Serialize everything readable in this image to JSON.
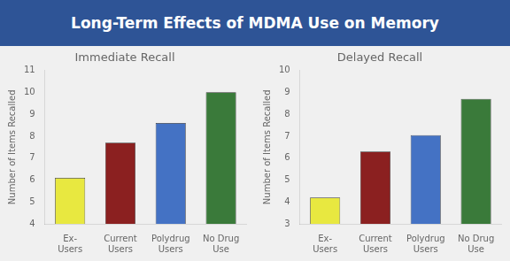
{
  "title": "Long-Term Effects of MDMA Use on Memory",
  "chart_data": [
    {
      "type": "bar",
      "title": "Immediate Recall",
      "ylabel": "Number of Items Recalled",
      "categories": [
        "Ex-\nUsers",
        "Current\nUsers",
        "Polydrug\nUsers",
        "No Drug\nUse"
      ],
      "values": [
        6.1,
        7.7,
        8.6,
        10.0
      ],
      "colors": [
        "#E8E840",
        "#8B2020",
        "#4472C4",
        "#3A7A3A"
      ],
      "ylim": [
        4,
        11
      ],
      "yticks": [
        4,
        5,
        6,
        7,
        8,
        9,
        10,
        11
      ],
      "grid": false
    },
    {
      "type": "bar",
      "title": "Delayed Recall",
      "ylabel": "Number of Items Recalled",
      "categories": [
        "Ex-\nUsers",
        "Current\nUsers",
        "Polydrug\nUsers",
        "No Drug\nUse"
      ],
      "values": [
        4.2,
        6.3,
        7.05,
        8.7
      ],
      "colors": [
        "#E8E840",
        "#8B2020",
        "#4472C4",
        "#3A7A3A"
      ],
      "ylim": [
        3,
        10
      ],
      "yticks": [
        3,
        4,
        5,
        6,
        7,
        8,
        9,
        10
      ],
      "grid": false
    }
  ]
}
